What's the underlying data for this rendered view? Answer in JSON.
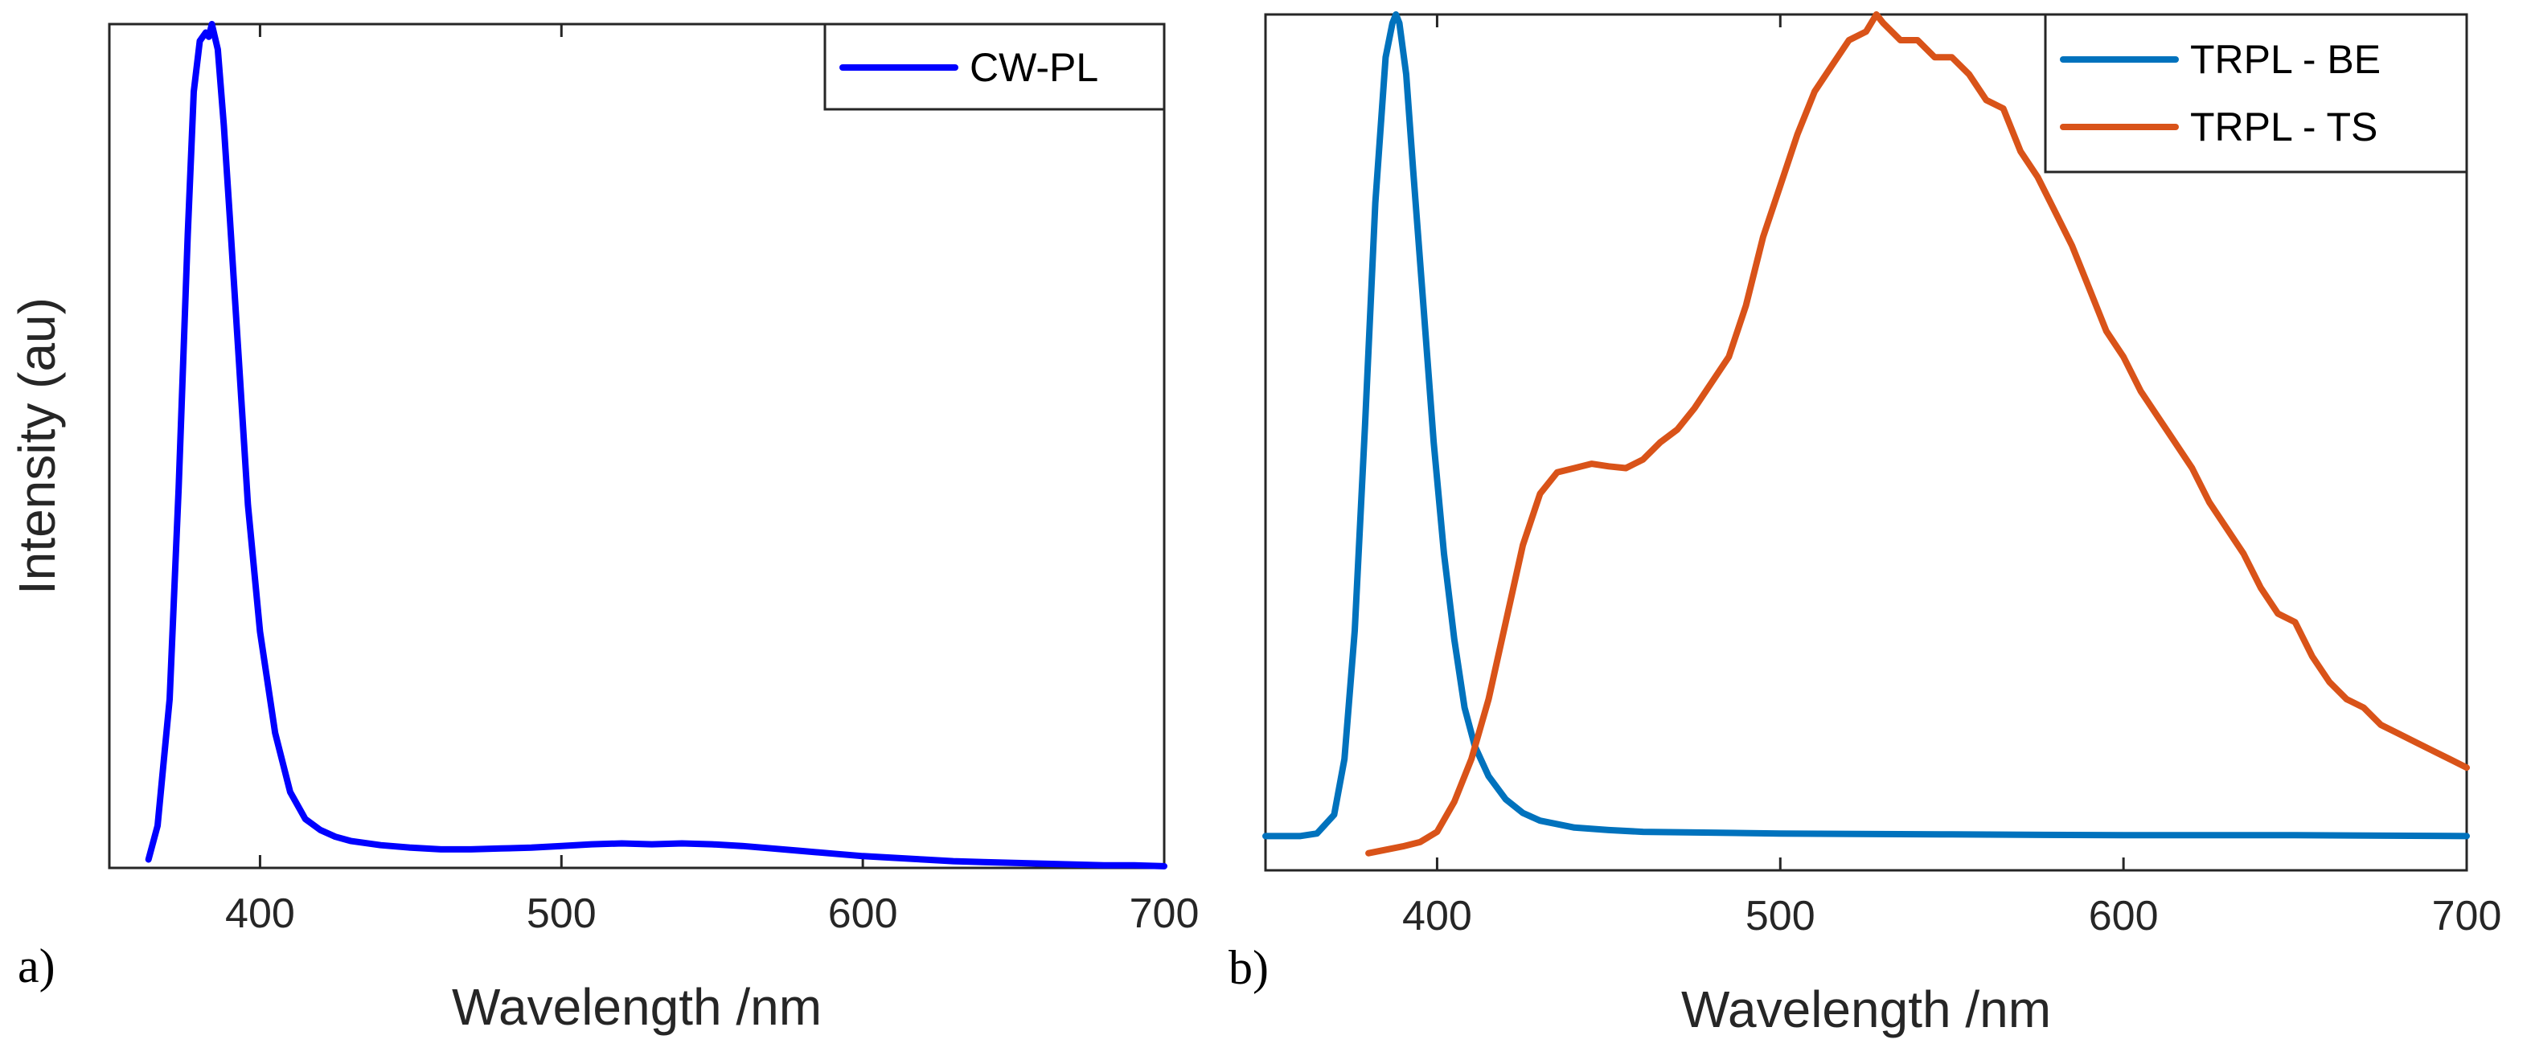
{
  "chart_data": [
    {
      "type": "line",
      "panel_label": "a)",
      "title": "",
      "xlabel": "Wavelength /nm",
      "ylabel": "Intensity (au)",
      "xlim": [
        350,
        700
      ],
      "ylim": [
        0,
        1
      ],
      "xticks": [
        400,
        500,
        600,
        700
      ],
      "yticks": [],
      "grid": false,
      "legend_position": "top-right",
      "series": [
        {
          "name": "CW-PL",
          "color": "#0000ff",
          "x": [
            363,
            366,
            370,
            373,
            376,
            378,
            380,
            382,
            383,
            384,
            385,
            386,
            388,
            390,
            393,
            396,
            400,
            405,
            410,
            415,
            420,
            425,
            430,
            440,
            450,
            460,
            470,
            480,
            490,
            500,
            510,
            520,
            530,
            540,
            550,
            560,
            570,
            580,
            590,
            600,
            610,
            620,
            630,
            640,
            650,
            660,
            670,
            680,
            690,
            700
          ],
          "y": [
            0.01,
            0.05,
            0.2,
            0.45,
            0.75,
            0.92,
            0.98,
            0.99,
            0.985,
            1.0,
            0.985,
            0.97,
            0.88,
            0.77,
            0.6,
            0.43,
            0.28,
            0.16,
            0.09,
            0.058,
            0.045,
            0.037,
            0.032,
            0.027,
            0.024,
            0.022,
            0.022,
            0.023,
            0.024,
            0.026,
            0.028,
            0.029,
            0.028,
            0.029,
            0.028,
            0.026,
            0.023,
            0.02,
            0.017,
            0.014,
            0.012,
            0.01,
            0.008,
            0.007,
            0.006,
            0.005,
            0.004,
            0.003,
            0.003,
            0.002
          ]
        }
      ]
    },
    {
      "type": "line",
      "panel_label": "b)",
      "title": "",
      "xlabel": "Wavelength /nm",
      "ylabel": "",
      "xlim": [
        350,
        700
      ],
      "ylim": [
        0,
        1
      ],
      "xticks": [
        400,
        500,
        600,
        700
      ],
      "yticks": [],
      "grid": false,
      "legend_position": "top-right",
      "series": [
        {
          "name": "TRPL - BE",
          "color": "#0072bd",
          "x": [
            350,
            360,
            365,
            370,
            373,
            376,
            379,
            382,
            385,
            387,
            388,
            389,
            391,
            393,
            396,
            399,
            402,
            405,
            408,
            411,
            415,
            420,
            425,
            430,
            440,
            450,
            460,
            480,
            500,
            550,
            600,
            650,
            700
          ],
          "y": [
            0.04,
            0.04,
            0.043,
            0.065,
            0.13,
            0.28,
            0.52,
            0.78,
            0.95,
            0.99,
            1.0,
            0.99,
            0.93,
            0.82,
            0.66,
            0.5,
            0.37,
            0.27,
            0.19,
            0.145,
            0.11,
            0.083,
            0.067,
            0.058,
            0.05,
            0.047,
            0.045,
            0.044,
            0.043,
            0.042,
            0.041,
            0.041,
            0.04
          ]
        },
        {
          "name": "TRPL - TS",
          "color": "#d95319",
          "x": [
            380,
            390,
            395,
            400,
            405,
            410,
            415,
            420,
            425,
            430,
            435,
            440,
            445,
            450,
            455,
            460,
            465,
            470,
            475,
            480,
            485,
            490,
            495,
            500,
            505,
            510,
            515,
            520,
            525,
            528,
            530,
            535,
            540,
            545,
            550,
            555,
            560,
            565,
            570,
            575,
            580,
            585,
            590,
            595,
            600,
            605,
            610,
            615,
            620,
            625,
            630,
            635,
            640,
            645,
            650,
            655,
            660,
            665,
            670,
            675,
            680,
            685,
            690,
            695,
            700
          ],
          "y": [
            0.02,
            0.028,
            0.033,
            0.045,
            0.08,
            0.13,
            0.2,
            0.29,
            0.38,
            0.44,
            0.465,
            0.47,
            0.475,
            0.472,
            0.47,
            0.48,
            0.5,
            0.515,
            0.54,
            0.57,
            0.6,
            0.66,
            0.74,
            0.8,
            0.86,
            0.91,
            0.94,
            0.97,
            0.98,
            1.0,
            0.99,
            0.97,
            0.97,
            0.95,
            0.95,
            0.93,
            0.9,
            0.89,
            0.84,
            0.81,
            0.77,
            0.73,
            0.68,
            0.63,
            0.6,
            0.56,
            0.53,
            0.5,
            0.47,
            0.43,
            0.4,
            0.37,
            0.33,
            0.3,
            0.29,
            0.25,
            0.22,
            0.2,
            0.19,
            0.17,
            0.16,
            0.15,
            0.14,
            0.13,
            0.12
          ]
        }
      ]
    }
  ]
}
